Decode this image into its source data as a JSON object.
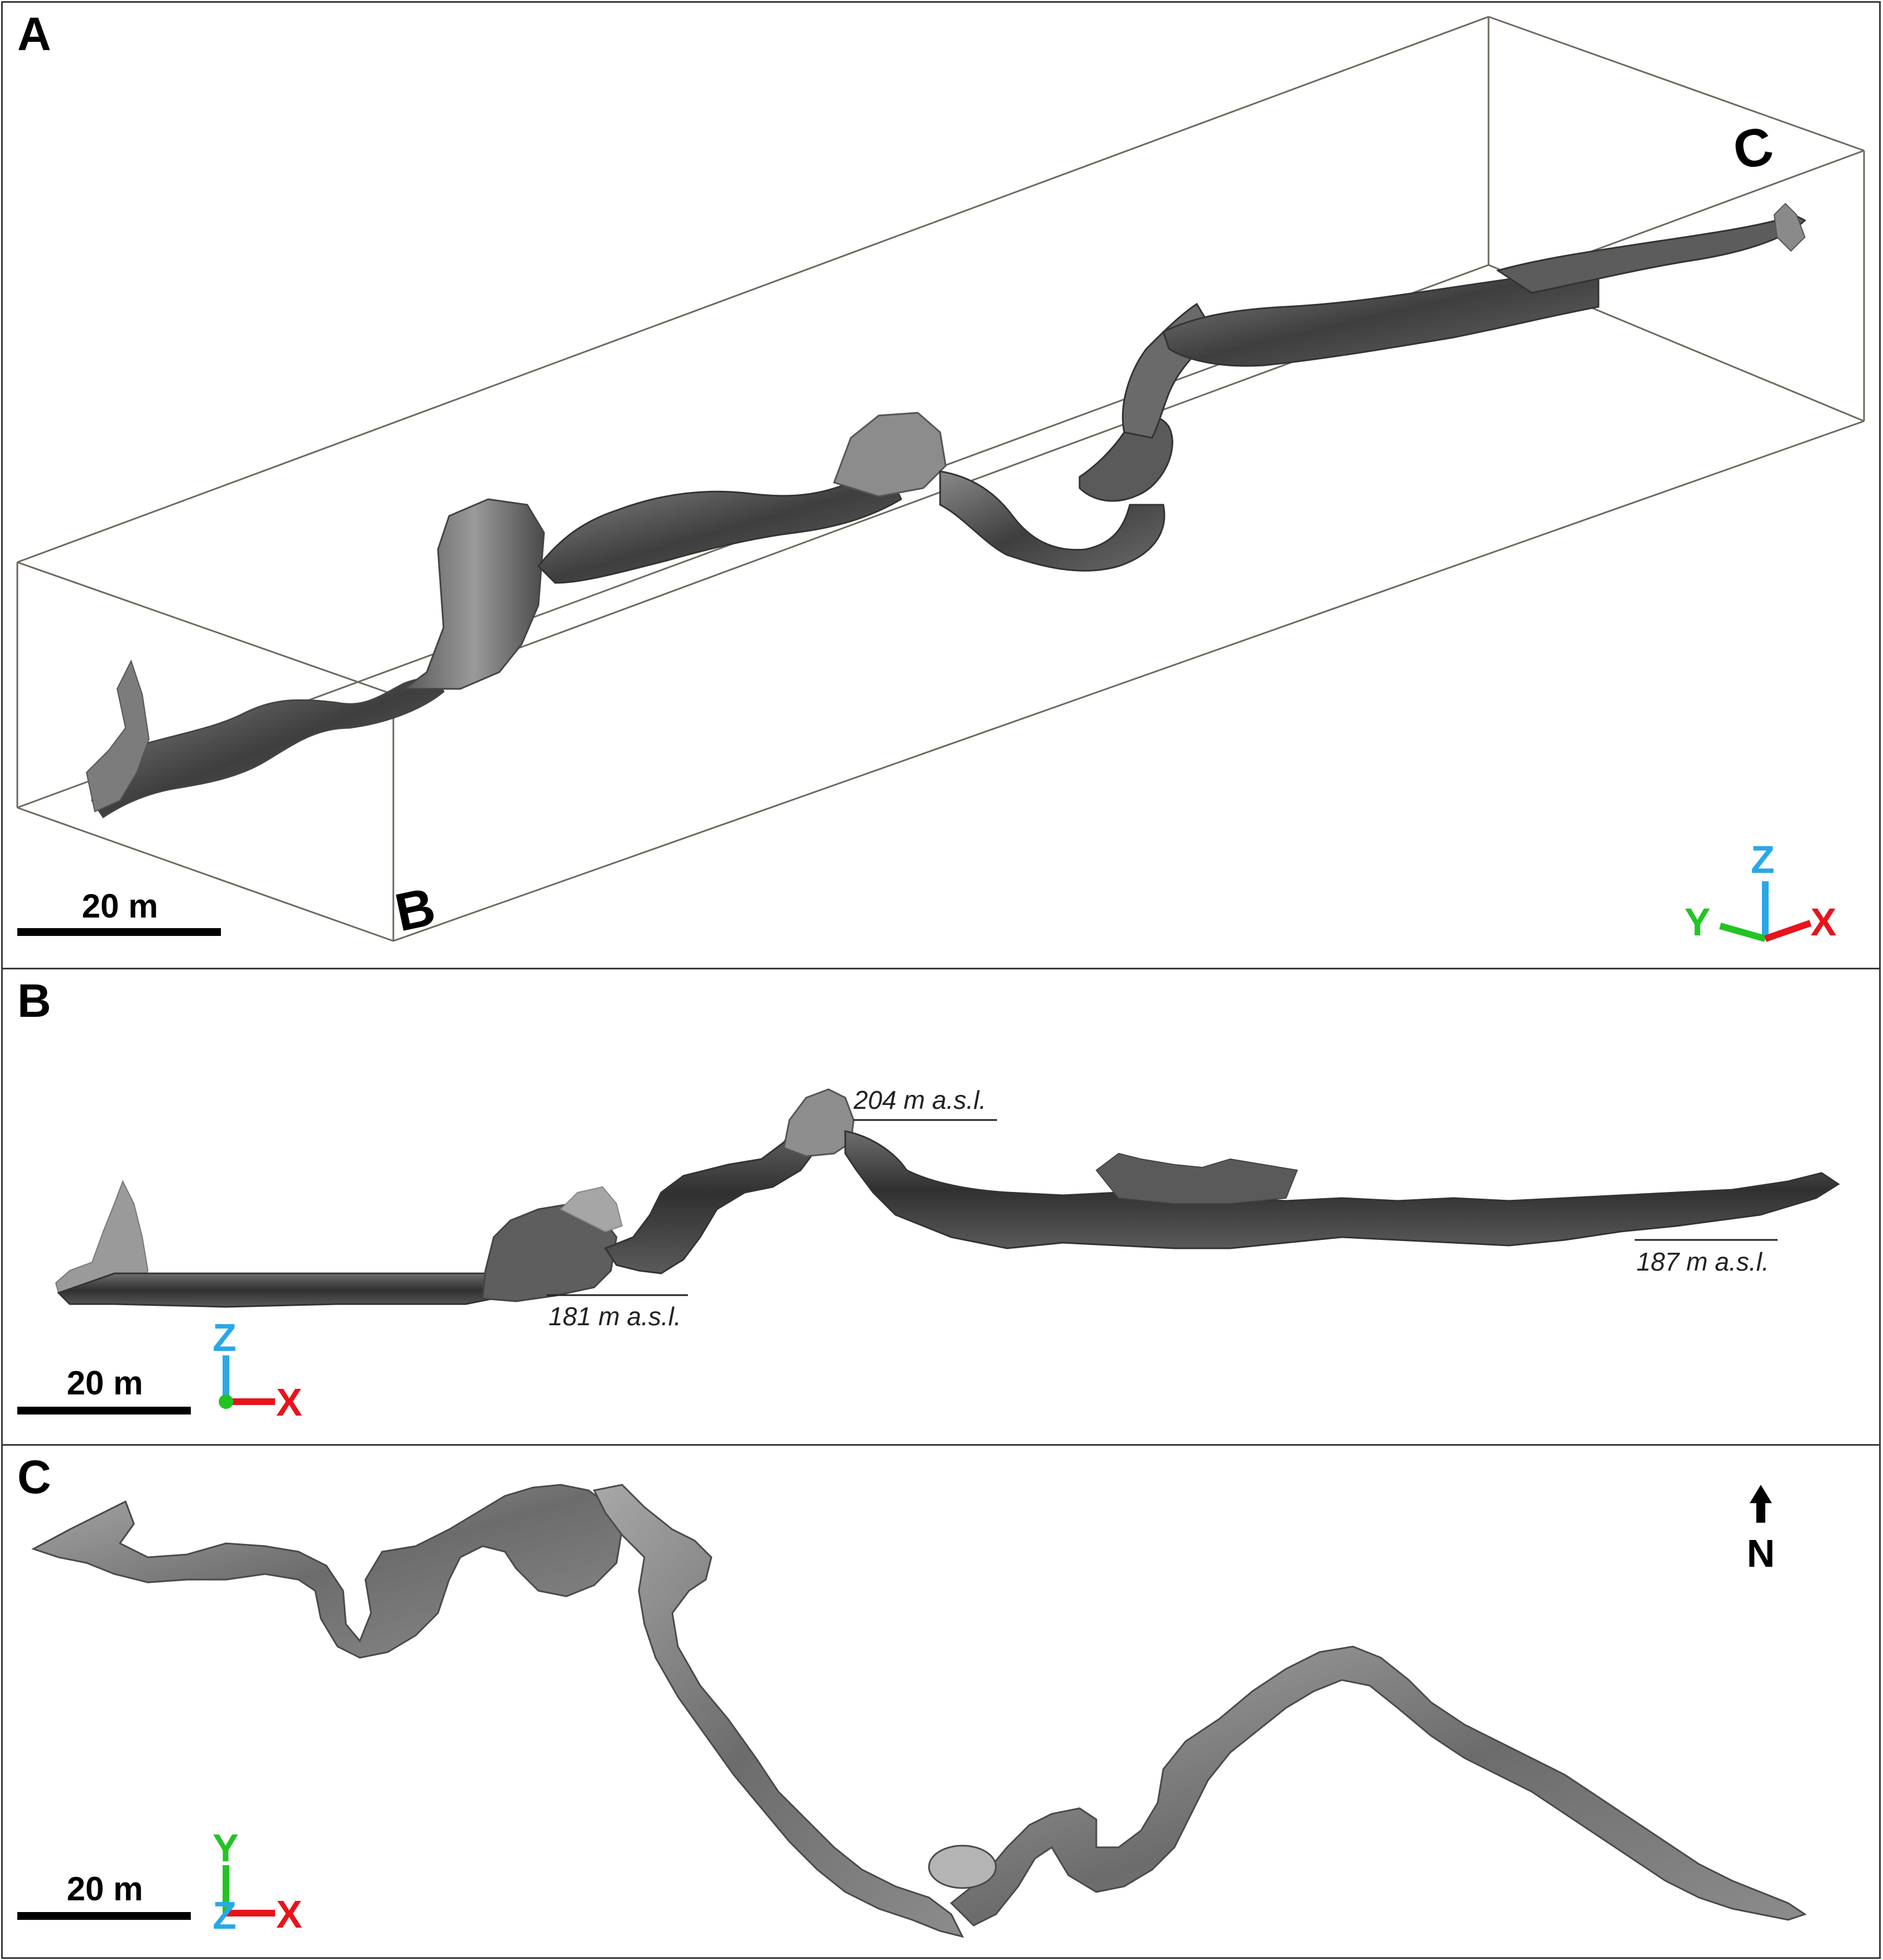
{
  "panels": {
    "a": {
      "letter": "A",
      "scale_label": "20 m",
      "box_labels": {
        "b": "B",
        "c": "C"
      },
      "axes": {
        "z": "Z",
        "y": "Y",
        "x": "X"
      }
    },
    "b": {
      "letter": "B",
      "scale_label": "20 m",
      "elevations": {
        "top": "204 m a.s.l.",
        "low": "181 m a.s.l.",
        "right": "187 m a.s.l."
      },
      "axes": {
        "z": "Z",
        "x": "X"
      }
    },
    "c": {
      "letter": "C",
      "scale_label": "20 m",
      "north": "N",
      "axes": {
        "y": "Y",
        "z": "Z",
        "x": "X"
      }
    }
  },
  "colors": {
    "axis_x": "#e8141c",
    "axis_y": "#22c424",
    "axis_z": "#29a8e8",
    "cave_dark": "#3c3c3c",
    "cave_mid": "#7a7a7a",
    "cave_light": "#b8b8b8",
    "box_line": "#6e6a5e"
  }
}
